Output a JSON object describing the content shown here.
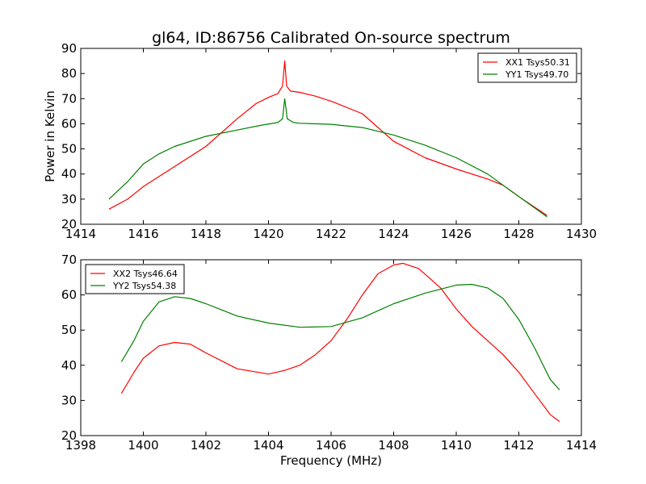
{
  "figure": {
    "title": "gl64, ID:86756 Calibrated On-source spectrum",
    "ylabel": "Power in Kelvin",
    "xlabel": "Frequency (MHz)"
  },
  "chart_data": [
    {
      "type": "line",
      "title": "gl64, ID:86756 Calibrated On-source spectrum",
      "xlabel": "",
      "ylabel": "Power in Kelvin",
      "xlim": [
        1414,
        1430
      ],
      "ylim": [
        20,
        90
      ],
      "xticks": [
        1414,
        1416,
        1418,
        1420,
        1422,
        1424,
        1426,
        1428,
        1430
      ],
      "yticks": [
        20,
        30,
        40,
        50,
        60,
        70,
        80,
        90
      ],
      "x_tick_labels": [
        "1414",
        "1416",
        "1418",
        "1420",
        "1422",
        "1424",
        "1426",
        "1428",
        "1430"
      ],
      "y_tick_labels": [
        "20",
        "30",
        "40",
        "50",
        "60",
        "70",
        "80",
        "90"
      ],
      "grid": false,
      "legend_position": "top-right",
      "series": [
        {
          "name": "XX1 Tsys50.31",
          "color": "#ff0000",
          "points": [
            [
              1414.9,
              26
            ],
            [
              1415.5,
              30
            ],
            [
              1416,
              35
            ],
            [
              1417,
              43
            ],
            [
              1418,
              51
            ],
            [
              1419,
              62
            ],
            [
              1419.6,
              68
            ],
            [
              1420,
              70.5
            ],
            [
              1420.3,
              72
            ],
            [
              1420.45,
              75
            ],
            [
              1420.52,
              85
            ],
            [
              1420.58,
              75
            ],
            [
              1420.7,
              73
            ],
            [
              1421,
              72.5
            ],
            [
              1421.5,
              71
            ],
            [
              1422,
              69
            ],
            [
              1423,
              64
            ],
            [
              1424,
              53
            ],
            [
              1425,
              46.5
            ],
            [
              1426,
              42
            ],
            [
              1427,
              38
            ],
            [
              1427.5,
              35.5
            ],
            [
              1428,
              31
            ],
            [
              1428.9,
              23.5
            ]
          ]
        },
        {
          "name": "YY1 Tsys49.70",
          "color": "#008000",
          "points": [
            [
              1414.9,
              30
            ],
            [
              1415.5,
              37
            ],
            [
              1416,
              44
            ],
            [
              1416.5,
              48
            ],
            [
              1417,
              51
            ],
            [
              1418,
              55
            ],
            [
              1419,
              57.5
            ],
            [
              1419.8,
              59.5
            ],
            [
              1420.3,
              60.5
            ],
            [
              1420.45,
              62
            ],
            [
              1420.52,
              70
            ],
            [
              1420.6,
              62
            ],
            [
              1420.8,
              60.5
            ],
            [
              1421,
              60.2
            ],
            [
              1422,
              59.8
            ],
            [
              1423,
              58.5
            ],
            [
              1424,
              55.5
            ],
            [
              1425,
              51.5
            ],
            [
              1426,
              46.5
            ],
            [
              1427,
              40
            ],
            [
              1428,
              31
            ],
            [
              1428.9,
              23
            ]
          ]
        }
      ]
    },
    {
      "type": "line",
      "title": "",
      "xlabel": "Frequency (MHz)",
      "ylabel": "",
      "xlim": [
        1398,
        1414
      ],
      "ylim": [
        20,
        70
      ],
      "xticks": [
        1398,
        1400,
        1402,
        1404,
        1406,
        1408,
        1410,
        1412,
        1414
      ],
      "yticks": [
        20,
        30,
        40,
        50,
        60,
        70
      ],
      "x_tick_labels": [
        "1398",
        "1400",
        "1402",
        "1404",
        "1406",
        "1408",
        "1410",
        "1412",
        "1414"
      ],
      "y_tick_labels": [
        "20",
        "30",
        "40",
        "50",
        "60",
        "70"
      ],
      "grid": false,
      "legend_position": "top-left",
      "series": [
        {
          "name": "XX2 Tsys46.64",
          "color": "#ff0000",
          "points": [
            [
              1399.3,
              32
            ],
            [
              1399.7,
              38
            ],
            [
              1400,
              42
            ],
            [
              1400.5,
              45.5
            ],
            [
              1401,
              46.5
            ],
            [
              1401.5,
              46
            ],
            [
              1402,
              43.5
            ],
            [
              1403,
              39
            ],
            [
              1404,
              37.5
            ],
            [
              1404.5,
              38.5
            ],
            [
              1405,
              40
            ],
            [
              1405.5,
              43
            ],
            [
              1406,
              47
            ],
            [
              1406.5,
              53
            ],
            [
              1407,
              60
            ],
            [
              1407.5,
              66
            ],
            [
              1408,
              68.5
            ],
            [
              1408.3,
              69
            ],
            [
              1408.8,
              67.5
            ],
            [
              1409.5,
              62
            ],
            [
              1410,
              56
            ],
            [
              1410.5,
              51
            ],
            [
              1411,
              47
            ],
            [
              1411.5,
              43
            ],
            [
              1412,
              38
            ],
            [
              1412.5,
              32
            ],
            [
              1413,
              26
            ],
            [
              1413.3,
              24
            ]
          ]
        },
        {
          "name": "YY2 Tsys54.38",
          "color": "#008000",
          "points": [
            [
              1399.3,
              41
            ],
            [
              1399.7,
              47
            ],
            [
              1400,
              52.5
            ],
            [
              1400.5,
              58
            ],
            [
              1401,
              59.5
            ],
            [
              1401.5,
              59
            ],
            [
              1402,
              57.5
            ],
            [
              1403,
              54
            ],
            [
              1404,
              52
            ],
            [
              1405,
              50.8
            ],
            [
              1406,
              51
            ],
            [
              1407,
              53.5
            ],
            [
              1408,
              57.5
            ],
            [
              1409,
              60.5
            ],
            [
              1410,
              62.8
            ],
            [
              1410.5,
              63
            ],
            [
              1411,
              62
            ],
            [
              1411.5,
              59
            ],
            [
              1412,
              53
            ],
            [
              1412.5,
              45
            ],
            [
              1413,
              36
            ],
            [
              1413.3,
              33
            ]
          ]
        }
      ]
    }
  ]
}
